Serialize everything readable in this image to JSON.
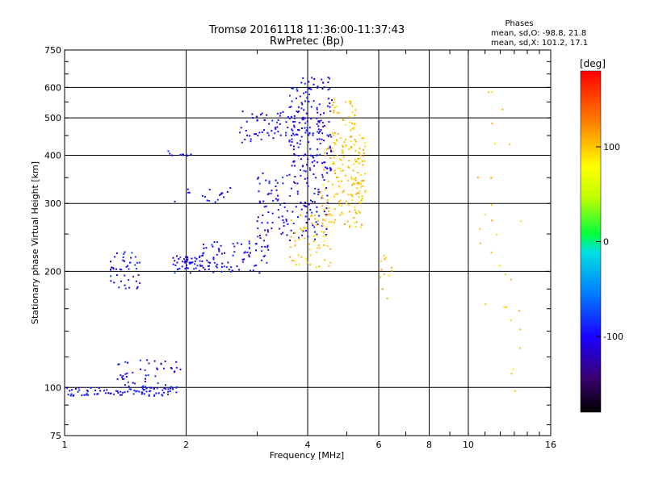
{
  "chart_data": {
    "type": "scatter",
    "title": "Tromsø 20161118 11:36:00-11:37:43",
    "subtitle": "RwPretec (Bp)",
    "xlabel": "Frequency [MHz]",
    "ylabel": "Stationary phase Virtual Height [km]",
    "x_scale": "log",
    "y_scale": "log",
    "xlim": [
      1,
      16
    ],
    "ylim": [
      75,
      750
    ],
    "x_ticks": [
      1,
      2,
      4,
      6,
      8,
      10,
      16
    ],
    "y_ticks": [
      75,
      100,
      200,
      300,
      400,
      500,
      600,
      750
    ],
    "grid": true,
    "phases_legend": {
      "title": "Phases",
      "line_o": "mean, sd,O: -98.8, 21.8",
      "line_x": "mean, sd,X: 101.2, 17.1"
    },
    "colorbar": {
      "label": "[deg]",
      "range": [
        -180,
        180
      ],
      "ticks": [
        -100,
        0,
        100
      ],
      "tick_labels": [
        "-100",
        "0",
        "100"
      ]
    },
    "series": [
      {
        "phase_center": -98.8,
        "phase_sd": 21.8,
        "clusters": [
          {
            "x": [
              1.0,
              1.9
            ],
            "y": [
              95,
              100
            ],
            "n": 90
          },
          {
            "x": [
              1.35,
              1.95
            ],
            "y": [
              100,
              118
            ],
            "n": 50
          },
          {
            "x": [
              1.3,
              1.55
            ],
            "y": [
              180,
              225
            ],
            "n": 45
          },
          {
            "x": [
              1.85,
              2.2
            ],
            "y": [
              198,
              220
            ],
            "n": 50
          },
          {
            "x": [
              2.2,
              3.2
            ],
            "y": [
              198,
              240
            ],
            "n": 80
          },
          {
            "x": [
              3.0,
              4.5
            ],
            "y": [
              240,
              360
            ],
            "n": 140
          },
          {
            "x": [
              3.6,
              4.6
            ],
            "y": [
              360,
              640
            ],
            "n": 170
          },
          {
            "x": [
              2.7,
              4.0
            ],
            "y": [
              430,
              520
            ],
            "n": 70
          },
          {
            "x": [
              1.8,
              2.6
            ],
            "y": [
              300,
              330
            ],
            "n": 18
          },
          {
            "x": [
              1.8,
              2.1
            ],
            "y": [
              395,
              410
            ],
            "n": 10
          }
        ]
      },
      {
        "phase_center": 101.2,
        "phase_sd": 17.1,
        "clusters": [
          {
            "x": [
              3.6,
              4.6
            ],
            "y": [
              205,
              280
            ],
            "n": 60
          },
          {
            "x": [
              4.3,
              5.5
            ],
            "y": [
              260,
              420
            ],
            "n": 120
          },
          {
            "x": [
              4.6,
              5.3
            ],
            "y": [
              420,
              560
            ],
            "n": 50
          },
          {
            "x": [
              5.1,
              5.6
            ],
            "y": [
              300,
              460
            ],
            "n": 40
          },
          {
            "x": [
              6.0,
              6.7
            ],
            "y": [
              170,
              240
            ],
            "n": 12
          },
          {
            "x": [
              10.5,
              13.5
            ],
            "y": [
              90,
              620
            ],
            "n": 30
          }
        ]
      }
    ]
  }
}
